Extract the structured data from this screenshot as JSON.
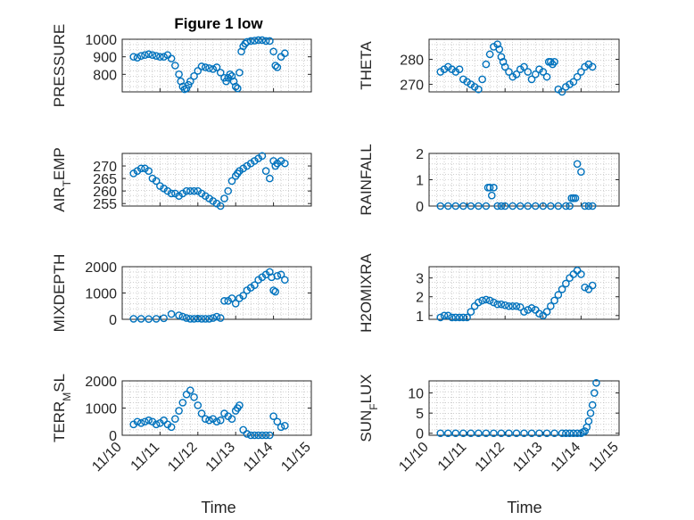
{
  "figure": {
    "title": "Figure 1 low",
    "xlabel": "Time"
  },
  "colors": {
    "marker": "#0072BD",
    "axis": "#262626",
    "grid": "#b0b0b0",
    "background": "#ffffff"
  },
  "chart_data": [
    {
      "type": "scatter",
      "ylabel": "PRESSURE",
      "xlim": [
        0,
        5
      ],
      "ylim": [
        700,
        1000
      ],
      "yticks": [
        800,
        900,
        1000
      ],
      "xticks": [],
      "xticklabels": [],
      "x": [
        0.3,
        0.4,
        0.5,
        0.6,
        0.7,
        0.8,
        0.9,
        1.0,
        1.1,
        1.2,
        1.3,
        1.4,
        1.5,
        1.55,
        1.6,
        1.65,
        1.7,
        1.75,
        1.8,
        1.9,
        2.0,
        2.1,
        2.2,
        2.3,
        2.4,
        2.5,
        2.6,
        2.7,
        2.75,
        2.8,
        2.85,
        2.9,
        2.95,
        3.0,
        3.05,
        3.1,
        3.15,
        3.2,
        3.25,
        3.3,
        3.4,
        3.5,
        3.6,
        3.7,
        3.8,
        3.9,
        4.0,
        4.05,
        4.1,
        4.2,
        4.3
      ],
      "y": [
        900,
        895,
        905,
        910,
        915,
        910,
        905,
        900,
        900,
        910,
        890,
        850,
        800,
        760,
        730,
        715,
        720,
        740,
        760,
        790,
        820,
        845,
        840,
        835,
        830,
        840,
        810,
        780,
        760,
        780,
        800,
        790,
        760,
        730,
        720,
        810,
        930,
        960,
        975,
        985,
        990,
        992,
        995,
        995,
        990,
        990,
        930,
        850,
        840,
        900,
        920
      ]
    },
    {
      "type": "scatter",
      "ylabel": "THETA",
      "xlim": [
        0,
        5
      ],
      "ylim": [
        267,
        288
      ],
      "yticks": [
        270,
        280
      ],
      "xticks": [],
      "xticklabels": [],
      "x": [
        0.3,
        0.4,
        0.5,
        0.6,
        0.7,
        0.8,
        0.9,
        1.0,
        1.1,
        1.2,
        1.3,
        1.4,
        1.5,
        1.6,
        1.7,
        1.8,
        1.85,
        1.9,
        1.95,
        2.0,
        2.1,
        2.2,
        2.3,
        2.4,
        2.5,
        2.6,
        2.7,
        2.8,
        2.9,
        3.0,
        3.1,
        3.15,
        3.2,
        3.25,
        3.3,
        3.4,
        3.5,
        3.6,
        3.7,
        3.8,
        3.9,
        4.0,
        4.1,
        4.2,
        4.3
      ],
      "y": [
        275,
        276,
        277,
        276,
        275,
        276,
        272,
        271,
        270,
        269,
        268,
        272,
        278,
        282,
        285,
        286,
        284,
        281,
        279,
        277,
        275,
        273,
        274,
        276,
        277,
        275,
        272,
        274,
        276,
        275,
        273,
        279,
        279,
        278,
        279,
        268,
        267,
        269,
        270,
        271,
        273,
        275,
        277,
        278,
        277
      ]
    },
    {
      "type": "scatter",
      "ylabel": "AIR_TEMP",
      "xlim": [
        0,
        5
      ],
      "ylim": [
        254,
        275
      ],
      "yticks": [
        255,
        260,
        265,
        270
      ],
      "xticks": [],
      "xticklabels": [],
      "x": [
        0.3,
        0.4,
        0.5,
        0.6,
        0.7,
        0.8,
        0.9,
        1.0,
        1.1,
        1.2,
        1.3,
        1.4,
        1.5,
        1.6,
        1.7,
        1.8,
        1.9,
        2.0,
        2.1,
        2.2,
        2.3,
        2.4,
        2.5,
        2.6,
        2.7,
        2.8,
        2.9,
        3.0,
        3.05,
        3.1,
        3.2,
        3.3,
        3.4,
        3.5,
        3.6,
        3.7,
        3.8,
        3.9,
        4.0,
        4.05,
        4.1,
        4.2,
        4.3
      ],
      "y": [
        267,
        268,
        269,
        269,
        268,
        265,
        264,
        262,
        261,
        260,
        259,
        259,
        258,
        259,
        260,
        260,
        260,
        260,
        259,
        258,
        257,
        256,
        255,
        254,
        257,
        260,
        264,
        266,
        267,
        268,
        269,
        270,
        271,
        272,
        273,
        274,
        268,
        265,
        272,
        270,
        271,
        272,
        271
      ]
    },
    {
      "type": "scatter",
      "ylabel": "RAINFALL",
      "xlim": [
        0,
        5
      ],
      "ylim": [
        0,
        2
      ],
      "yticks": [
        0,
        1,
        2
      ],
      "xticks": [],
      "xticklabels": [],
      "x": [
        0.3,
        0.5,
        0.7,
        0.9,
        1.1,
        1.3,
        1.5,
        1.55,
        1.6,
        1.65,
        1.7,
        1.8,
        1.9,
        2.0,
        2.2,
        2.4,
        2.6,
        2.8,
        3.0,
        3.2,
        3.4,
        3.6,
        3.7,
        3.75,
        3.8,
        3.85,
        3.9,
        4.0,
        4.1,
        4.2,
        4.3
      ],
      "y": [
        0,
        0,
        0,
        0,
        0,
        0,
        0,
        0.7,
        0.7,
        0.4,
        0.7,
        0,
        0,
        0,
        0,
        0,
        0,
        0,
        0,
        0,
        0,
        0,
        0,
        0.3,
        0.3,
        0.3,
        1.6,
        1.3,
        0,
        0,
        0
      ]
    },
    {
      "type": "scatter",
      "ylabel": "MIXDEPTH",
      "xlim": [
        0,
        5
      ],
      "ylim": [
        0,
        2000
      ],
      "yticks": [
        0,
        1000,
        2000
      ],
      "xticks": [],
      "xticklabels": [],
      "x": [
        0.3,
        0.5,
        0.7,
        0.9,
        1.1,
        1.3,
        1.5,
        1.6,
        1.7,
        1.8,
        1.9,
        2.0,
        2.1,
        2.2,
        2.3,
        2.4,
        2.5,
        2.6,
        2.7,
        2.8,
        2.9,
        3.0,
        3.1,
        3.2,
        3.3,
        3.4,
        3.5,
        3.6,
        3.7,
        3.8,
        3.9,
        3.95,
        4.0,
        4.05,
        4.1,
        4.2,
        4.3
      ],
      "y": [
        20,
        20,
        10,
        20,
        40,
        200,
        150,
        100,
        50,
        20,
        20,
        30,
        20,
        20,
        20,
        50,
        100,
        50,
        700,
        700,
        800,
        600,
        800,
        900,
        1100,
        1200,
        1300,
        1500,
        1600,
        1700,
        1800,
        1600,
        1100,
        1050,
        1650,
        1700,
        1500
      ]
    },
    {
      "type": "scatter",
      "ylabel": "H2OMIXRA",
      "xlim": [
        0,
        5
      ],
      "ylim": [
        0.8,
        3.6
      ],
      "yticks": [
        1,
        2,
        3
      ],
      "xticks": [],
      "xticklabels": [],
      "x": [
        0.3,
        0.4,
        0.5,
        0.6,
        0.7,
        0.8,
        0.9,
        1.0,
        1.1,
        1.2,
        1.3,
        1.4,
        1.5,
        1.6,
        1.7,
        1.8,
        1.9,
        2.0,
        2.1,
        2.2,
        2.3,
        2.4,
        2.5,
        2.6,
        2.7,
        2.8,
        2.9,
        3.0,
        3.1,
        3.2,
        3.3,
        3.4,
        3.5,
        3.6,
        3.7,
        3.8,
        3.9,
        4.0,
        4.1,
        4.2,
        4.3
      ],
      "y": [
        0.9,
        1.0,
        1.0,
        0.9,
        0.9,
        0.9,
        0.9,
        0.9,
        1.2,
        1.5,
        1.7,
        1.8,
        1.85,
        1.8,
        1.7,
        1.6,
        1.6,
        1.55,
        1.5,
        1.5,
        1.5,
        1.45,
        1.2,
        1.3,
        1.4,
        1.3,
        1.1,
        1.0,
        1.2,
        1.5,
        1.8,
        2.1,
        2.4,
        2.7,
        3.0,
        3.2,
        3.4,
        3.2,
        2.5,
        2.4,
        2.6
      ]
    },
    {
      "type": "scatter",
      "ylabel": "TERR_MSL",
      "xlim": [
        0,
        5
      ],
      "ylim": [
        0,
        2000
      ],
      "yticks": [
        0,
        1000,
        2000
      ],
      "xticks": [
        0,
        1,
        2,
        3,
        4,
        5
      ],
      "xticklabels": [
        "11/10",
        "11/11",
        "11/12",
        "11/13",
        "11/14",
        "11/15"
      ],
      "x": [
        0.3,
        0.4,
        0.5,
        0.6,
        0.7,
        0.8,
        0.9,
        1.0,
        1.1,
        1.2,
        1.3,
        1.4,
        1.5,
        1.6,
        1.7,
        1.8,
        1.9,
        2.0,
        2.1,
        2.2,
        2.3,
        2.4,
        2.5,
        2.6,
        2.7,
        2.8,
        2.9,
        3.0,
        3.05,
        3.1,
        3.2,
        3.3,
        3.4,
        3.5,
        3.6,
        3.7,
        3.8,
        3.9,
        4.0,
        4.1,
        4.2,
        4.3
      ],
      "y": [
        400,
        500,
        450,
        500,
        550,
        500,
        400,
        450,
        550,
        400,
        300,
        600,
        900,
        1200,
        1500,
        1650,
        1400,
        1100,
        800,
        600,
        550,
        600,
        500,
        550,
        800,
        700,
        600,
        900,
        1000,
        1100,
        200,
        50,
        0,
        0,
        0,
        0,
        0,
        0,
        700,
        500,
        300,
        350
      ]
    },
    {
      "type": "scatter",
      "ylabel": "SUN_FLUX",
      "xlim": [
        0,
        5
      ],
      "ylim": [
        -0.5,
        13
      ],
      "yticks": [
        0,
        5,
        10
      ],
      "xticks": [
        0,
        1,
        2,
        3,
        4,
        5
      ],
      "xticklabels": [
        "11/10",
        "11/11",
        "11/12",
        "11/13",
        "11/14",
        "11/15"
      ],
      "x": [
        0.3,
        0.5,
        0.7,
        0.9,
        1.1,
        1.3,
        1.5,
        1.7,
        1.9,
        2.1,
        2.3,
        2.5,
        2.7,
        2.9,
        3.1,
        3.3,
        3.5,
        3.6,
        3.7,
        3.8,
        3.9,
        4.0,
        4.05,
        4.1,
        4.15,
        4.2,
        4.25,
        4.3,
        4.35,
        4.4
      ],
      "y": [
        0,
        0,
        0,
        0,
        0,
        0,
        0,
        0,
        0,
        0,
        0,
        0,
        0,
        0,
        0,
        0,
        0,
        0,
        0,
        0,
        0,
        0,
        0.3,
        0.5,
        1.5,
        3,
        5,
        7,
        10,
        12.5
      ]
    }
  ]
}
